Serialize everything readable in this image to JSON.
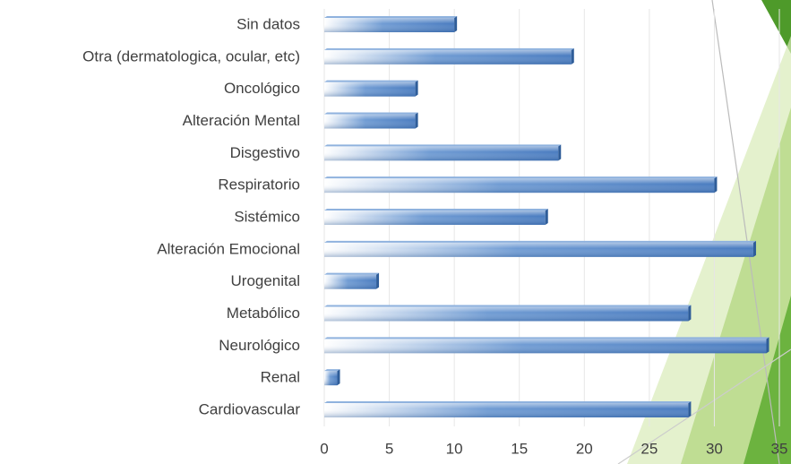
{
  "chart_data": {
    "type": "bar",
    "orientation": "horizontal",
    "categories": [
      "Sin datos",
      "Otra (dermatologica, ocular, etc)",
      "Oncológico",
      "Alteración Mental",
      "Disgestivo",
      "Respiratorio",
      "Sistémico",
      "Alteración Emocional",
      "Urogenital",
      "Metabólico",
      "Neurológico",
      "Renal",
      "Cardiovascular"
    ],
    "values": [
      10,
      19,
      7,
      7,
      18,
      30,
      17,
      33,
      4,
      28,
      34,
      1,
      28
    ],
    "color": "#4a7cc0",
    "xlim": [
      0,
      35
    ],
    "xticks": [
      0,
      5,
      10,
      15,
      20,
      25,
      30,
      35
    ],
    "grid": true
  }
}
